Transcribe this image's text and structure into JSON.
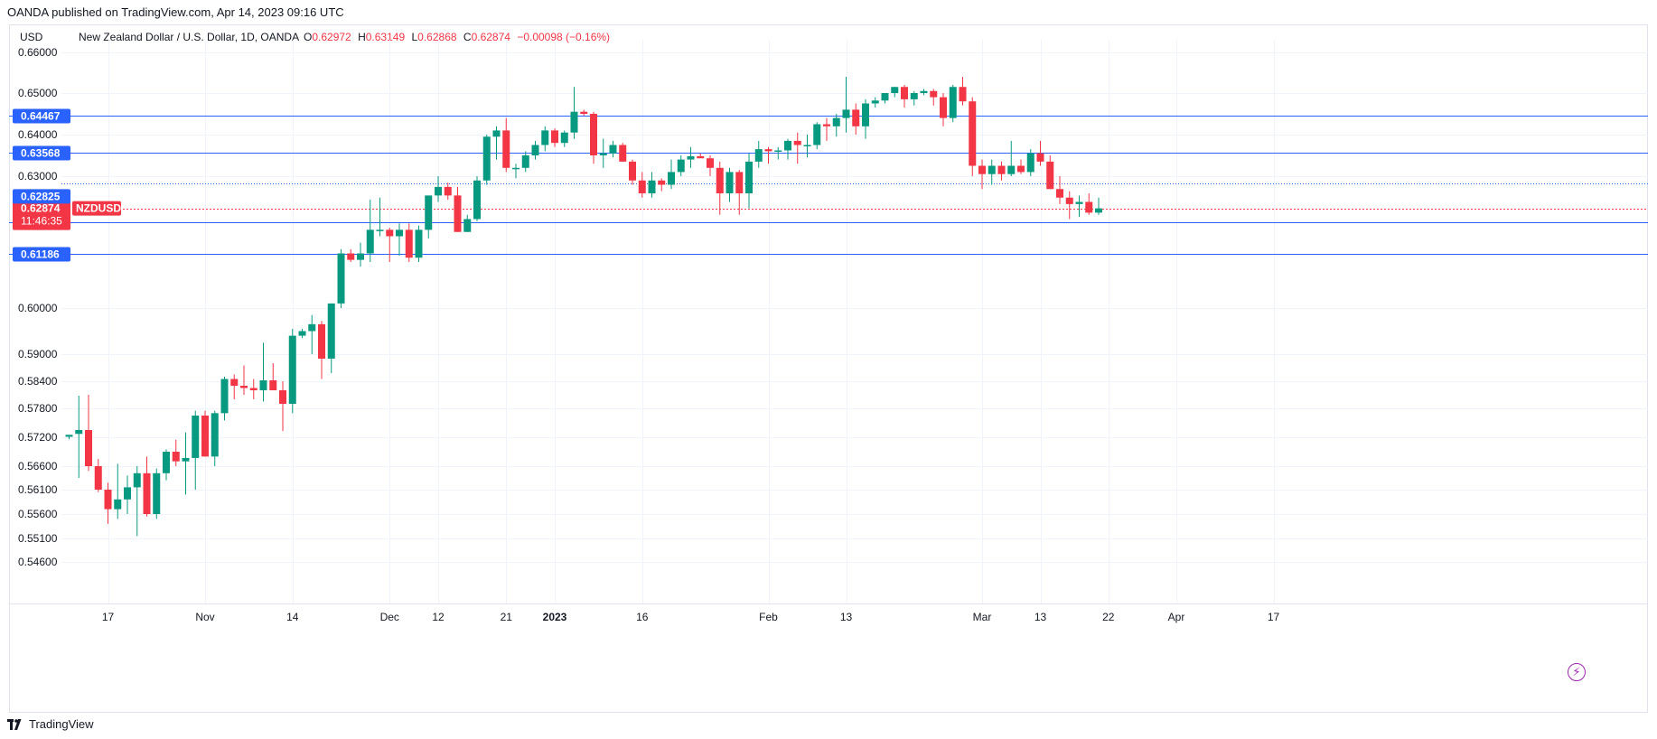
{
  "header": {
    "published": "OANDA published on TradingView.com, Apr 14, 2023 09:16 UTC",
    "currency": "USD",
    "symbol_desc": "New Zealand Dollar / U.S. Dollar, 1D, OANDA",
    "ohlc": {
      "o_label": "O",
      "o": "0.62972",
      "h_label": "H",
      "h": "0.63149",
      "l_label": "L",
      "l": "0.62868",
      "c_label": "C",
      "c": "0.62874",
      "change": "−0.00098 (−0.16%)"
    }
  },
  "footer": {
    "brand": "TradingView"
  },
  "colors": {
    "up": "#089981",
    "down": "#f23645",
    "level": "#2962ff",
    "grid": "#f0f3fa"
  },
  "chart_data": {
    "type": "candlestick",
    "title": "New Zealand Dollar / U.S. Dollar, 1D, OANDA",
    "ylim": [
      0.542,
      0.664
    ],
    "y_ticks": [
      "0.66000",
      "0.65000",
      "0.64000",
      "0.63000",
      "0.60000",
      "0.59000",
      "0.58400",
      "0.57800",
      "0.57200",
      "0.56600",
      "0.56100",
      "0.55600",
      "0.55100",
      "0.54600"
    ],
    "x_labels": [
      {
        "label": "17",
        "i": 4
      },
      {
        "label": "Nov",
        "i": 14
      },
      {
        "label": "14",
        "i": 23
      },
      {
        "label": "Dec",
        "i": 33
      },
      {
        "label": "12",
        "i": 38
      },
      {
        "label": "21",
        "i": 45
      },
      {
        "label": "2023",
        "i": 50
      },
      {
        "label": "16",
        "i": 59
      },
      {
        "label": "Feb",
        "i": 72
      },
      {
        "label": "13",
        "i": 80
      },
      {
        "label": "Mar",
        "i": 94
      },
      {
        "label": "13",
        "i": 100
      },
      {
        "label": "22",
        "i": 107
      },
      {
        "label": "Apr",
        "i": 114
      },
      {
        "label": "17",
        "i": 124
      }
    ],
    "levels": [
      "0.64467",
      "0.63568",
      "0.61920",
      "0.61186"
    ],
    "price_badge": {
      "value": "0.62874",
      "countdown": "11:46:35",
      "symbol": "NZDUSD",
      "prev": "0.62825"
    },
    "candles": [
      [
        0.5721,
        0.5725,
        0.5716,
        0.5725
      ],
      [
        0.5727,
        0.5808,
        0.5635,
        0.5735
      ],
      [
        0.5735,
        0.581,
        0.565,
        0.566
      ],
      [
        0.566,
        0.5675,
        0.5605,
        0.561
      ],
      [
        0.561,
        0.5625,
        0.554,
        0.557
      ],
      [
        0.557,
        0.5665,
        0.555,
        0.559
      ],
      [
        0.559,
        0.564,
        0.556,
        0.5615
      ],
      [
        0.5615,
        0.566,
        0.5515,
        0.5645
      ],
      [
        0.5645,
        0.568,
        0.5555,
        0.556
      ],
      [
        0.556,
        0.5655,
        0.555,
        0.5645
      ],
      [
        0.5645,
        0.5695,
        0.563,
        0.569
      ],
      [
        0.569,
        0.5715,
        0.566,
        0.567
      ],
      [
        0.567,
        0.573,
        0.56,
        0.5677
      ],
      [
        0.5677,
        0.5775,
        0.561,
        0.5765
      ],
      [
        0.5765,
        0.5775,
        0.568,
        0.568
      ],
      [
        0.568,
        0.5775,
        0.566,
        0.577
      ],
      [
        0.577,
        0.585,
        0.5755,
        0.5845
      ],
      [
        0.5845,
        0.5855,
        0.58,
        0.583
      ],
      [
        0.583,
        0.5875,
        0.581,
        0.5825
      ],
      [
        0.5825,
        0.5845,
        0.58,
        0.582
      ],
      [
        0.582,
        0.5925,
        0.5795,
        0.5842
      ],
      [
        0.5842,
        0.588,
        0.582,
        0.582
      ],
      [
        0.582,
        0.584,
        0.5733,
        0.579
      ],
      [
        0.579,
        0.5955,
        0.577,
        0.594
      ],
      [
        0.594,
        0.5955,
        0.5935,
        0.595
      ],
      [
        0.595,
        0.5985,
        0.59,
        0.5965
      ],
      [
        0.5965,
        0.5972,
        0.5845,
        0.589
      ],
      [
        0.589,
        0.601,
        0.5858,
        0.601
      ],
      [
        0.601,
        0.613,
        0.6,
        0.612
      ],
      [
        0.612,
        0.613,
        0.61,
        0.6105
      ],
      [
        0.6105,
        0.6145,
        0.609,
        0.612
      ],
      [
        0.612,
        0.6245,
        0.61,
        0.6175
      ],
      [
        0.6175,
        0.625,
        0.616,
        0.6175
      ],
      [
        0.6175,
        0.618,
        0.61,
        0.616
      ],
      [
        0.616,
        0.619,
        0.6115,
        0.6175
      ],
      [
        0.6175,
        0.619,
        0.61,
        0.611
      ],
      [
        0.611,
        0.6185,
        0.61,
        0.6175
      ],
      [
        0.6175,
        0.6245,
        0.6155,
        0.6255
      ],
      [
        0.6255,
        0.63,
        0.624,
        0.6275
      ],
      [
        0.6275,
        0.6285,
        0.6245,
        0.6255
      ],
      [
        0.6255,
        0.6275,
        0.617,
        0.617
      ],
      [
        0.617,
        0.621,
        0.617,
        0.62
      ],
      [
        0.62,
        0.63,
        0.6195,
        0.629
      ],
      [
        0.629,
        0.64,
        0.628,
        0.6395
      ],
      [
        0.6395,
        0.642,
        0.634,
        0.641
      ],
      [
        0.641,
        0.644,
        0.631,
        0.632
      ],
      [
        0.632,
        0.633,
        0.6295,
        0.632
      ],
      [
        0.632,
        0.636,
        0.631,
        0.635
      ],
      [
        0.635,
        0.6385,
        0.634,
        0.6375
      ],
      [
        0.6375,
        0.642,
        0.636,
        0.641
      ],
      [
        0.641,
        0.6415,
        0.637,
        0.638
      ],
      [
        0.638,
        0.641,
        0.637,
        0.6405
      ],
      [
        0.6405,
        0.6515,
        0.639,
        0.6455
      ],
      [
        0.6455,
        0.646,
        0.6445,
        0.645
      ],
      [
        0.645,
        0.6455,
        0.633,
        0.635
      ],
      [
        0.635,
        0.639,
        0.632,
        0.6355
      ],
      [
        0.6355,
        0.6385,
        0.6345,
        0.6375
      ],
      [
        0.6375,
        0.638,
        0.6335,
        0.6335
      ],
      [
        0.6335,
        0.634,
        0.628,
        0.629
      ],
      [
        0.629,
        0.631,
        0.625,
        0.626
      ],
      [
        0.626,
        0.631,
        0.625,
        0.629
      ],
      [
        0.629,
        0.6295,
        0.6265,
        0.628
      ],
      [
        0.628,
        0.634,
        0.627,
        0.631
      ],
      [
        0.631,
        0.635,
        0.63,
        0.634
      ],
      [
        0.634,
        0.637,
        0.632,
        0.6348
      ],
      [
        0.6348,
        0.6355,
        0.6345,
        0.6343
      ],
      [
        0.6343,
        0.635,
        0.63,
        0.632
      ],
      [
        0.632,
        0.6335,
        0.621,
        0.626
      ],
      [
        0.626,
        0.632,
        0.624,
        0.631
      ],
      [
        0.631,
        0.6315,
        0.621,
        0.626
      ],
      [
        0.626,
        0.6355,
        0.6225,
        0.6335
      ],
      [
        0.6335,
        0.6385,
        0.632,
        0.6365
      ],
      [
        0.6365,
        0.637,
        0.633,
        0.636
      ],
      [
        0.636,
        0.637,
        0.634,
        0.6362
      ],
      [
        0.6362,
        0.639,
        0.634,
        0.6385
      ],
      [
        0.6385,
        0.6405,
        0.633,
        0.6375
      ],
      [
        0.6375,
        0.64,
        0.6345,
        0.6375
      ],
      [
        0.6375,
        0.643,
        0.6365,
        0.6425
      ],
      [
        0.6425,
        0.644,
        0.6385,
        0.642
      ],
      [
        0.642,
        0.645,
        0.6395,
        0.644
      ],
      [
        0.644,
        0.654,
        0.6405,
        0.646
      ],
      [
        0.646,
        0.6475,
        0.64,
        0.642
      ],
      [
        0.642,
        0.6485,
        0.639,
        0.6475
      ],
      [
        0.6475,
        0.649,
        0.6465,
        0.6482
      ],
      [
        0.6482,
        0.65,
        0.6475,
        0.65
      ],
      [
        0.65,
        0.6515,
        0.649,
        0.6515
      ],
      [
        0.6515,
        0.652,
        0.6465,
        0.6485
      ],
      [
        0.6485,
        0.6505,
        0.647,
        0.65
      ],
      [
        0.65,
        0.651,
        0.6495,
        0.6505
      ],
      [
        0.6505,
        0.651,
        0.647,
        0.649
      ],
      [
        0.649,
        0.65,
        0.642,
        0.644
      ],
      [
        0.644,
        0.652,
        0.643,
        0.6515
      ],
      [
        0.6515,
        0.654,
        0.647,
        0.648
      ],
      [
        0.648,
        0.649,
        0.63,
        0.6325
      ],
      [
        0.6325,
        0.634,
        0.627,
        0.6305
      ],
      [
        0.6305,
        0.634,
        0.628,
        0.6325
      ],
      [
        0.6325,
        0.6335,
        0.629,
        0.6305
      ],
      [
        0.6305,
        0.6385,
        0.63,
        0.6325
      ],
      [
        0.6325,
        0.634,
        0.6305,
        0.631
      ],
      [
        0.631,
        0.6365,
        0.63,
        0.6355
      ],
      [
        0.6355,
        0.6385,
        0.6325,
        0.6335
      ],
      [
        0.6335,
        0.635,
        0.627,
        0.627
      ],
      [
        0.627,
        0.63,
        0.6235,
        0.625
      ],
      [
        0.625,
        0.6265,
        0.62,
        0.6235
      ],
      [
        0.6235,
        0.6255,
        0.6205,
        0.624
      ],
      [
        0.624,
        0.626,
        0.621,
        0.6215
      ],
      [
        0.6215,
        0.625,
        0.621,
        0.6225
      ]
    ]
  }
}
